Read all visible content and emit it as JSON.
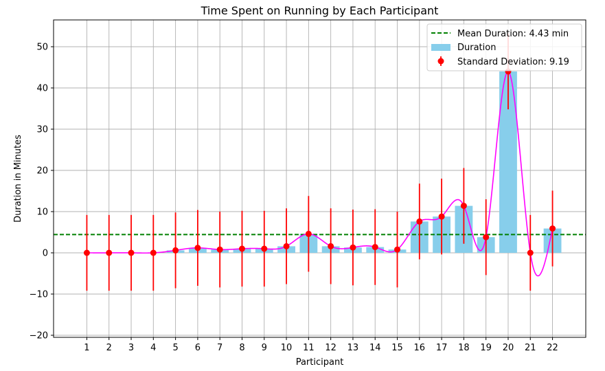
{
  "chart_data": {
    "type": "bar",
    "title": "Time Spent on Running by Each Participant",
    "xlabel": "Participant",
    "ylabel": "Duration in Minutes",
    "categories": [
      "1",
      "2",
      "3",
      "4",
      "5",
      "6",
      "7",
      "8",
      "9",
      "10",
      "11",
      "12",
      "13",
      "14",
      "15",
      "16",
      "17",
      "18",
      "19",
      "20",
      "21",
      "22"
    ],
    "series": [
      {
        "name": "Duration",
        "type": "bar",
        "color": "#87ceeb",
        "values": [
          0,
          0,
          0,
          0,
          0.6,
          1.2,
          0.8,
          1.0,
          1.0,
          1.6,
          4.6,
          1.6,
          1.3,
          1.4,
          0.8,
          7.6,
          8.8,
          11.4,
          3.8,
          44.0,
          0,
          5.9
        ]
      }
    ],
    "mean": {
      "label": "Mean Duration: 4.43 min",
      "value": 4.43,
      "color": "#008000"
    },
    "error": {
      "label": "Standard Deviation: 9.19",
      "value": 9.19,
      "color": "#ff0000"
    },
    "smooth_line_color": "#ff00ff",
    "ylim": [
      -20.5,
      56.5
    ],
    "yticks": [
      -20,
      -10,
      0,
      10,
      20,
      30,
      40,
      50
    ],
    "xlim": [
      -0.5,
      23.5
    ],
    "grid": true,
    "legend_position": "top-right"
  }
}
